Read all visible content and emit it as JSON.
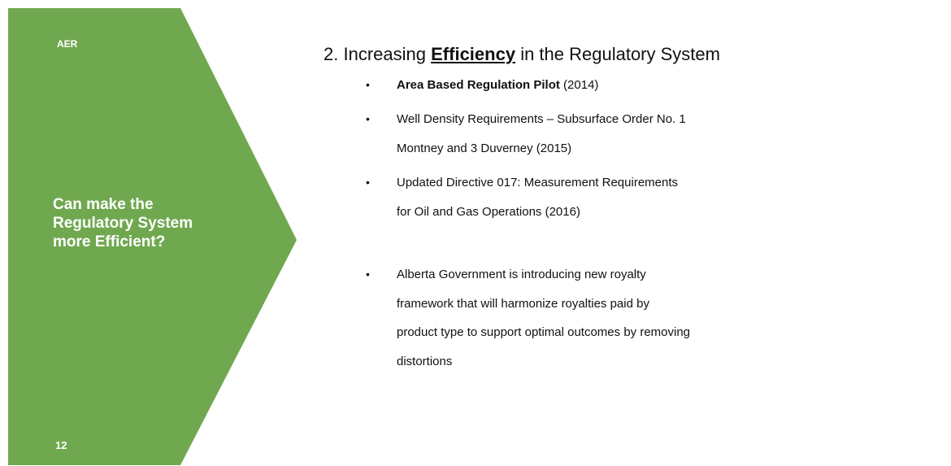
{
  "sidebar": {
    "logo": "AER",
    "question": "Can make the Regulatory System more Efficient?",
    "page_number": "12"
  },
  "heading": {
    "number": "2.",
    "before": "Increasing",
    "emphasis": "Efficiency",
    "after": "in the Regulatory System"
  },
  "bullets": [
    {
      "bold": "Area Based Regulation Pilot",
      "lines": [
        "(2014)"
      ]
    },
    {
      "lines": [
        "Well Density Requirements – Subsurface Order No. 1",
        "Montney and 3 Duverney (2015)"
      ]
    },
    {
      "lines": [
        "Updated Directive 017: Measurement Requirements",
        "for Oil and Gas Operations (2016)"
      ]
    },
    {
      "lines": [
        "Alberta Government is introducing new royalty",
        "framework that will harmonize royalties paid by",
        "product type to support optimal outcomes by removing",
        "distortions"
      ]
    }
  ]
}
